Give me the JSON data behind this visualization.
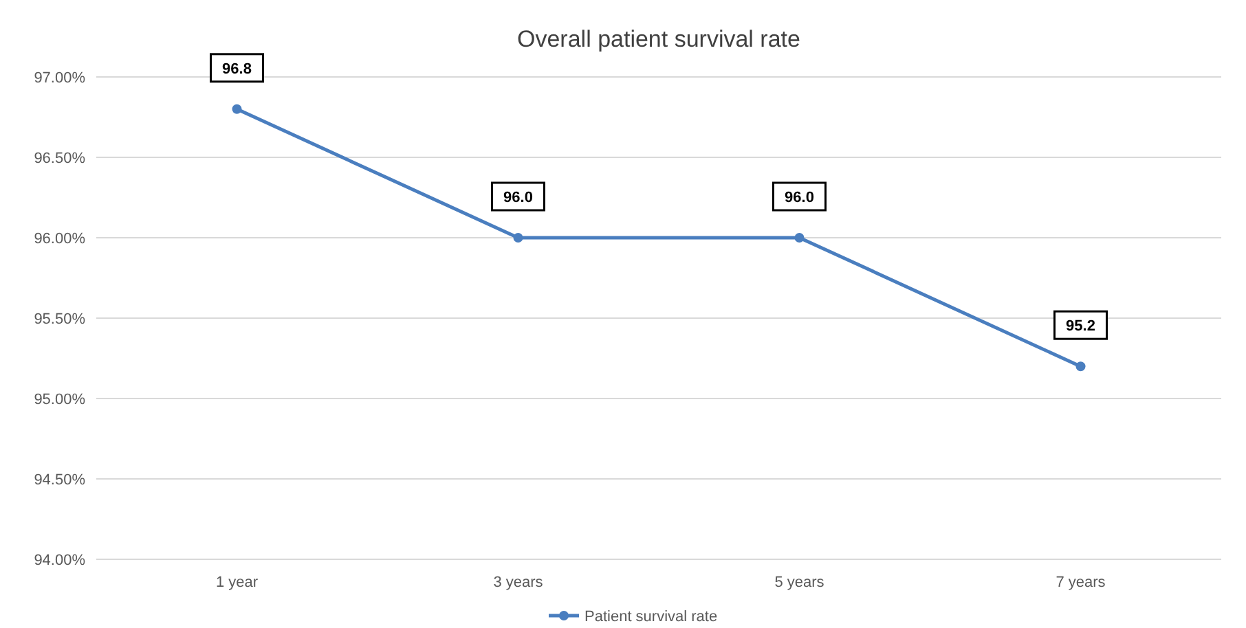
{
  "chart_data": {
    "type": "line",
    "title": "Overall patient survival rate",
    "categories": [
      "1 year",
      "3 years",
      "5 years",
      "7 years"
    ],
    "series": [
      {
        "name": "Patient survival rate",
        "color": "#4a7ebf",
        "values": [
          96.8,
          96.0,
          96.0,
          95.2
        ],
        "value_labels": [
          "96.8",
          "96.0",
          "96.0",
          "95.2"
        ]
      }
    ],
    "ylim": [
      94,
      97
    ],
    "yticks": [
      {
        "value": 94,
        "label": "94.00%"
      },
      {
        "value": 94.5,
        "label": "94.50%"
      },
      {
        "value": 95,
        "label": "95.00%"
      },
      {
        "value": 95.5,
        "label": "95.50%"
      },
      {
        "value": 96,
        "label": "96.00%"
      },
      {
        "value": 96.5,
        "label": "96.50%"
      },
      {
        "value": 97,
        "label": "97.00%"
      }
    ],
    "grid": "y",
    "legend": "bottom",
    "marker": "circle",
    "line_style": "solid"
  }
}
